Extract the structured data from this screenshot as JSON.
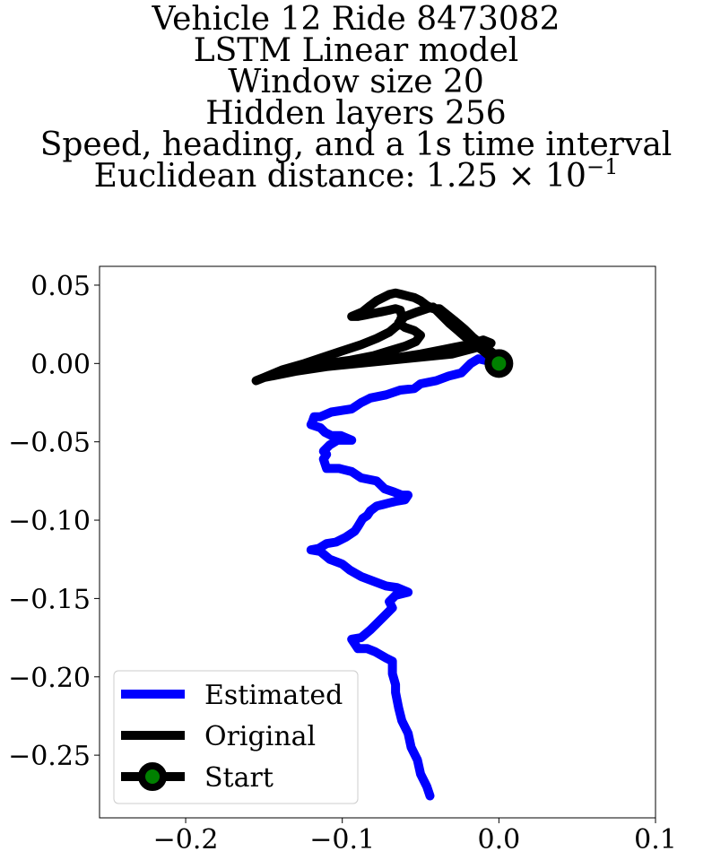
{
  "title_lines": [
    "Vehicle 12 Ride 8473082",
    "LSTM Linear model",
    "Window size 20",
    "Hidden layers 256",
    "Speed, heading, and a 1s time interval"
  ],
  "distance_line": {
    "prefix": "Euclidean distance: ",
    "mantissa": "1.25",
    "times": "×",
    "base": "10",
    "exponent": "−1"
  },
  "colors": {
    "estimated": "#0000ff",
    "original": "#000000",
    "start_marker_edge": "#000000",
    "start_marker_face": "#008000"
  },
  "chart_data": {
    "type": "line",
    "xlim": [
      -0.255,
      0.1
    ],
    "ylim": [
      -0.29,
      0.062
    ],
    "x_ticks": [
      {
        "value": -0.2,
        "label": "−0.2"
      },
      {
        "value": -0.1,
        "label": "−0.1"
      },
      {
        "value": 0.0,
        "label": "0.0"
      },
      {
        "value": 0.1,
        "label": "0.1"
      }
    ],
    "y_ticks": [
      {
        "value": 0.05,
        "label": "0.05"
      },
      {
        "value": 0.0,
        "label": "0.00"
      },
      {
        "value": -0.05,
        "label": "−0.05"
      },
      {
        "value": -0.1,
        "label": "−0.10"
      },
      {
        "value": -0.15,
        "label": "−0.15"
      },
      {
        "value": -0.2,
        "label": "−0.20"
      },
      {
        "value": -0.25,
        "label": "−0.25"
      }
    ],
    "grid": false,
    "legend_position": "lower-left",
    "series": [
      {
        "name": "Estimated",
        "points": [
          [
            0.0,
            0.0
          ],
          [
            -0.013,
            0.003
          ],
          [
            -0.018,
            0.0
          ],
          [
            -0.024,
            -0.006
          ],
          [
            -0.032,
            -0.008
          ],
          [
            -0.04,
            -0.011
          ],
          [
            -0.05,
            -0.013
          ],
          [
            -0.054,
            -0.016
          ],
          [
            -0.063,
            -0.017
          ],
          [
            -0.072,
            -0.02
          ],
          [
            -0.082,
            -0.022
          ],
          [
            -0.086,
            -0.024
          ],
          [
            -0.088,
            -0.025
          ],
          [
            -0.094,
            -0.029
          ],
          [
            -0.107,
            -0.031
          ],
          [
            -0.114,
            -0.034
          ],
          [
            -0.118,
            -0.034
          ],
          [
            -0.119,
            -0.037
          ],
          [
            -0.12,
            -0.039
          ],
          [
            -0.114,
            -0.041
          ],
          [
            -0.111,
            -0.044
          ],
          [
            -0.107,
            -0.046
          ],
          [
            -0.101,
            -0.046
          ],
          [
            -0.094,
            -0.049
          ],
          [
            -0.103,
            -0.049
          ],
          [
            -0.108,
            -0.052
          ],
          [
            -0.112,
            -0.056
          ],
          [
            -0.11,
            -0.058
          ],
          [
            -0.112,
            -0.061
          ],
          [
            -0.11,
            -0.067
          ],
          [
            -0.102,
            -0.067
          ],
          [
            -0.094,
            -0.069
          ],
          [
            -0.088,
            -0.073
          ],
          [
            -0.078,
            -0.075
          ],
          [
            -0.073,
            -0.08
          ],
          [
            -0.067,
            -0.082
          ],
          [
            -0.062,
            -0.084
          ],
          [
            -0.058,
            -0.084
          ],
          [
            -0.06,
            -0.087
          ],
          [
            -0.066,
            -0.088
          ],
          [
            -0.07,
            -0.089
          ],
          [
            -0.074,
            -0.09
          ],
          [
            -0.078,
            -0.091
          ],
          [
            -0.082,
            -0.094
          ],
          [
            -0.084,
            -0.097
          ],
          [
            -0.087,
            -0.099
          ],
          [
            -0.09,
            -0.104
          ],
          [
            -0.092,
            -0.107
          ],
          [
            -0.098,
            -0.111
          ],
          [
            -0.104,
            -0.114
          ],
          [
            -0.11,
            -0.115
          ],
          [
            -0.115,
            -0.118
          ],
          [
            -0.12,
            -0.119
          ],
          [
            -0.114,
            -0.12
          ],
          [
            -0.108,
            -0.125
          ],
          [
            -0.1,
            -0.128
          ],
          [
            -0.095,
            -0.132
          ],
          [
            -0.088,
            -0.136
          ],
          [
            -0.08,
            -0.139
          ],
          [
            -0.072,
            -0.142
          ],
          [
            -0.065,
            -0.143
          ],
          [
            -0.058,
            -0.146
          ],
          [
            -0.066,
            -0.148
          ],
          [
            -0.07,
            -0.152
          ],
          [
            -0.068,
            -0.156
          ],
          [
            -0.073,
            -0.161
          ],
          [
            -0.078,
            -0.166
          ],
          [
            -0.082,
            -0.17
          ],
          [
            -0.088,
            -0.175
          ],
          [
            -0.094,
            -0.176
          ],
          [
            -0.09,
            -0.182
          ],
          [
            -0.084,
            -0.182
          ],
          [
            -0.079,
            -0.184
          ],
          [
            -0.072,
            -0.188
          ],
          [
            -0.068,
            -0.19
          ],
          [
            -0.068,
            -0.198
          ],
          [
            -0.066,
            -0.205
          ],
          [
            -0.066,
            -0.21
          ],
          [
            -0.064,
            -0.22
          ],
          [
            -0.062,
            -0.228
          ],
          [
            -0.058,
            -0.236
          ],
          [
            -0.056,
            -0.245
          ],
          [
            -0.052,
            -0.253
          ],
          [
            -0.05,
            -0.262
          ],
          [
            -0.046,
            -0.27
          ],
          [
            -0.044,
            -0.276
          ]
        ]
      },
      {
        "name": "Original",
        "points": [
          [
            0.0,
            0.0
          ],
          [
            -0.003,
            0.006
          ],
          [
            -0.008,
            0.01
          ],
          [
            -0.012,
            0.013
          ],
          [
            -0.017,
            0.017
          ],
          [
            -0.022,
            0.022
          ],
          [
            -0.028,
            0.027
          ],
          [
            -0.033,
            0.031
          ],
          [
            -0.038,
            0.035
          ],
          [
            -0.042,
            0.035
          ],
          [
            -0.046,
            0.037
          ],
          [
            -0.05,
            0.04
          ],
          [
            -0.054,
            0.042
          ],
          [
            -0.058,
            0.043
          ],
          [
            -0.062,
            0.044
          ],
          [
            -0.066,
            0.045
          ],
          [
            -0.07,
            0.044
          ],
          [
            -0.074,
            0.042
          ],
          [
            -0.078,
            0.04
          ],
          [
            -0.082,
            0.037
          ],
          [
            -0.087,
            0.033
          ],
          [
            -0.094,
            0.03
          ],
          [
            -0.09,
            0.03
          ],
          [
            -0.085,
            0.031
          ],
          [
            -0.08,
            0.032
          ],
          [
            -0.075,
            0.033
          ],
          [
            -0.07,
            0.034
          ],
          [
            -0.066,
            0.035
          ],
          [
            -0.063,
            0.034
          ],
          [
            -0.062,
            0.03
          ],
          [
            -0.064,
            0.025
          ],
          [
            -0.07,
            0.02
          ],
          [
            -0.078,
            0.016
          ],
          [
            -0.088,
            0.012
          ],
          [
            -0.1,
            0.008
          ],
          [
            -0.112,
            0.004
          ],
          [
            -0.124,
            0.0
          ],
          [
            -0.138,
            -0.004
          ],
          [
            -0.15,
            -0.009
          ],
          [
            -0.155,
            -0.011
          ],
          [
            -0.15,
            -0.009
          ],
          [
            -0.14,
            -0.007
          ],
          [
            -0.125,
            -0.004
          ],
          [
            -0.11,
            -0.002
          ],
          [
            -0.09,
            0.0
          ],
          [
            -0.07,
            0.003
          ],
          [
            -0.05,
            0.006
          ],
          [
            -0.035,
            0.009
          ],
          [
            -0.02,
            0.012
          ],
          [
            -0.01,
            0.015
          ],
          [
            -0.005,
            0.013
          ],
          [
            -0.015,
            0.01
          ],
          [
            -0.03,
            0.006
          ],
          [
            -0.05,
            0.004
          ],
          [
            -0.07,
            0.002
          ],
          [
            -0.09,
            0.0
          ],
          [
            -0.11,
            -0.002
          ],
          [
            -0.13,
            -0.005
          ],
          [
            -0.145,
            -0.008
          ],
          [
            -0.13,
            -0.003
          ],
          [
            -0.11,
            0.0
          ],
          [
            -0.095,
            0.002
          ],
          [
            -0.08,
            0.005
          ],
          [
            -0.07,
            0.008
          ],
          [
            -0.06,
            0.011
          ],
          [
            -0.053,
            0.014
          ],
          [
            -0.05,
            0.018
          ],
          [
            -0.054,
            0.021
          ],
          [
            -0.06,
            0.023
          ],
          [
            -0.064,
            0.026
          ],
          [
            -0.06,
            0.03
          ],
          [
            -0.052,
            0.033
          ],
          [
            -0.046,
            0.035
          ],
          [
            -0.042,
            0.036
          ],
          [
            -0.04,
            0.034
          ],
          [
            -0.036,
            0.03
          ],
          [
            -0.032,
            0.026
          ],
          [
            -0.025,
            0.02
          ],
          [
            -0.018,
            0.014
          ],
          [
            -0.01,
            0.008
          ],
          [
            -0.004,
            0.003
          ],
          [
            0.0,
            0.0
          ]
        ]
      }
    ],
    "start_point": {
      "name": "Start",
      "x": 0.0,
      "y": 0.0
    },
    "legend": [
      {
        "label": "Estimated",
        "kind": "line",
        "color": "#0000ff"
      },
      {
        "label": "Original",
        "kind": "line",
        "color": "#000000"
      },
      {
        "label": "Start",
        "kind": "line-marker",
        "color": "#000000",
        "marker_color": "#008000"
      }
    ]
  }
}
